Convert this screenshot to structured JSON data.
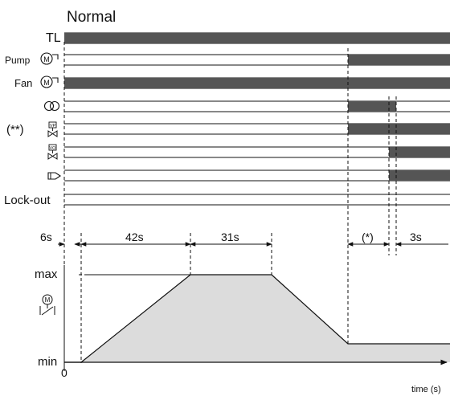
{
  "title": "Normal",
  "signals": [
    {
      "id": "tl",
      "label": "TL",
      "icon": null,
      "on": [
        [
          0,
          9999
        ]
      ]
    },
    {
      "id": "pump",
      "label": "Pump",
      "icon": "motor-icon",
      "on": [
        [
          3,
          9999
        ]
      ]
    },
    {
      "id": "fan",
      "label": "Fan",
      "icon": "motor-icon",
      "on": [
        [
          0,
          9999
        ]
      ]
    },
    {
      "id": "ignition-transformer",
      "label": "",
      "icon": "transformer-icon",
      "on": [
        [
          3,
          4
        ]
      ]
    },
    {
      "id": "valve-vp",
      "label": "(**)",
      "icon": "valve-vp-icon",
      "on": [
        [
          3,
          9999
        ]
      ]
    },
    {
      "id": "valve-vo",
      "label": "",
      "icon": "valve-vo-icon",
      "on": [
        [
          5,
          9999
        ]
      ]
    },
    {
      "id": "flame-detector",
      "label": "",
      "icon": "flame-detector-icon",
      "on": [
        [
          5,
          9999
        ]
      ]
    },
    {
      "id": "lockout",
      "label": "Lock-out",
      "icon": null,
      "on": []
    }
  ],
  "icon_text": {
    "motor": "M",
    "vp": "VP",
    "vo": "VO"
  },
  "phase_labels": [
    "6s",
    "42s",
    "31s",
    "(*)",
    "3s"
  ],
  "axis": {
    "max_label": "max",
    "min_label": "min",
    "origin_label": "0",
    "time_label": "time (s)"
  },
  "colors": {
    "active": "#555555",
    "fill": "#dcdcdc",
    "line": "#111111"
  }
}
